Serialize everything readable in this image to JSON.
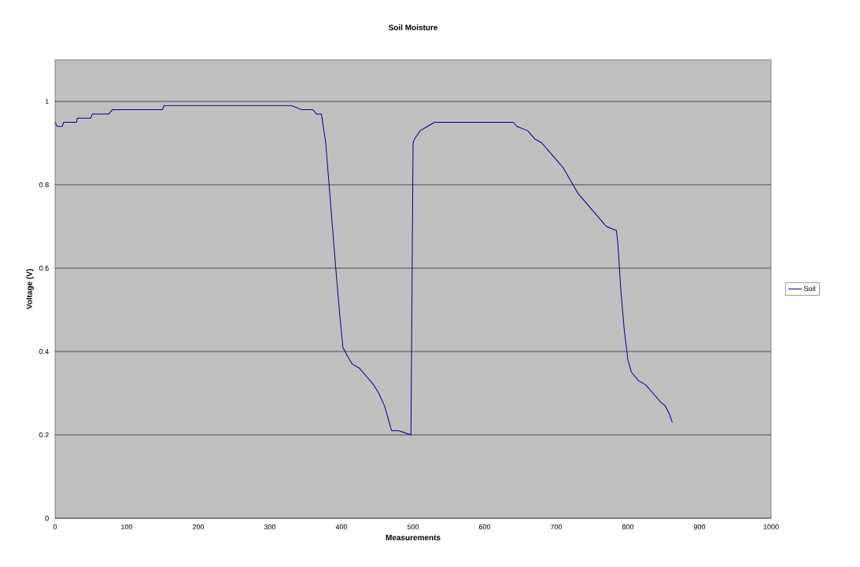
{
  "chart_data": {
    "type": "line",
    "title": "Soil Moisture",
    "xlabel": "Measurements",
    "ylabel": "Voltage (V)",
    "xlim": [
      0,
      1000
    ],
    "xticks": [
      0,
      100,
      200,
      300,
      400,
      500,
      600,
      700,
      800,
      900,
      1000
    ],
    "ylim": [
      0,
      1.1
    ],
    "yticks": [
      0,
      0.2,
      0.4,
      0.6,
      0.8,
      1
    ],
    "grid": "y",
    "legend": "right",
    "marker": "none",
    "line_style": "solid",
    "series": [
      {
        "name": "Soil",
        "color": "#000080",
        "x": [
          0,
          3,
          10,
          12,
          30,
          31,
          50,
          52,
          75,
          80,
          150,
          152,
          330,
          345,
          360,
          365,
          372,
          378,
          385,
          392,
          398,
          402,
          408,
          415,
          425,
          435,
          445,
          452,
          460,
          465,
          470,
          480,
          497,
          500,
          502,
          510,
          520,
          530,
          640,
          645,
          660,
          670,
          680,
          690,
          700,
          710,
          720,
          730,
          740,
          750,
          760,
          770,
          784,
          786,
          790,
          795,
          800,
          805,
          815,
          825,
          835,
          845,
          852,
          858,
          862
        ],
        "values": [
          0.95,
          0.94,
          0.94,
          0.95,
          0.95,
          0.96,
          0.96,
          0.97,
          0.97,
          0.98,
          0.98,
          0.99,
          0.99,
          0.98,
          0.98,
          0.97,
          0.97,
          0.9,
          0.75,
          0.6,
          0.48,
          0.41,
          0.39,
          0.37,
          0.36,
          0.34,
          0.32,
          0.3,
          0.27,
          0.24,
          0.21,
          0.21,
          0.2,
          0.9,
          0.91,
          0.93,
          0.94,
          0.95,
          0.95,
          0.94,
          0.93,
          0.91,
          0.9,
          0.88,
          0.86,
          0.84,
          0.81,
          0.78,
          0.76,
          0.74,
          0.72,
          0.7,
          0.69,
          0.66,
          0.55,
          0.45,
          0.38,
          0.35,
          0.33,
          0.32,
          0.3,
          0.28,
          0.27,
          0.25,
          0.23
        ]
      }
    ]
  }
}
